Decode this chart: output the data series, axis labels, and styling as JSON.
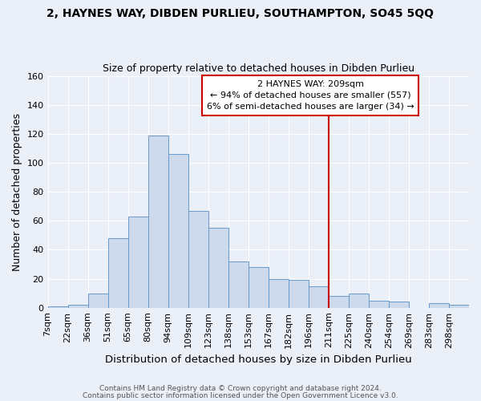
{
  "title_line1": "2, HAYNES WAY, DIBDEN PURLIEU, SOUTHAMPTON, SO45 5QQ",
  "title_line2": "Size of property relative to detached houses in Dibden Purlieu",
  "xlabel": "Distribution of detached houses by size in Dibden Purlieu",
  "ylabel": "Number of detached properties",
  "bin_labels": [
    "7sqm",
    "22sqm",
    "36sqm",
    "51sqm",
    "65sqm",
    "80sqm",
    "94sqm",
    "109sqm",
    "123sqm",
    "138sqm",
    "153sqm",
    "167sqm",
    "182sqm",
    "196sqm",
    "211sqm",
    "225sqm",
    "240sqm",
    "254sqm",
    "269sqm",
    "283sqm",
    "298sqm"
  ],
  "bar_heights": [
    1,
    2,
    10,
    48,
    63,
    119,
    106,
    67,
    55,
    32,
    28,
    20,
    19,
    15,
    8,
    10,
    5,
    4,
    0,
    3,
    2
  ],
  "bar_color": "#ccdaec",
  "bar_edge_color": "#6699cc",
  "annotation_line1": "2 HAYNES WAY: 209sqm",
  "annotation_line2": "← 94% of detached houses are smaller (557)",
  "annotation_line3": "6% of semi-detached houses are larger (34) →",
  "vline_color": "#cc0000",
  "annotation_box_facecolor": "#ffffff",
  "annotation_box_edgecolor": "#cc0000",
  "footnote1": "Contains HM Land Registry data © Crown copyright and database right 2024.",
  "footnote2": "Contains public sector information licensed under the Open Government Licence v3.0.",
  "ylim": [
    0,
    160
  ],
  "yticks": [
    0,
    20,
    40,
    60,
    80,
    100,
    120,
    140,
    160
  ],
  "background_color": "#eaeff8",
  "grid_color": "#ffffff",
  "vline_index": 14
}
